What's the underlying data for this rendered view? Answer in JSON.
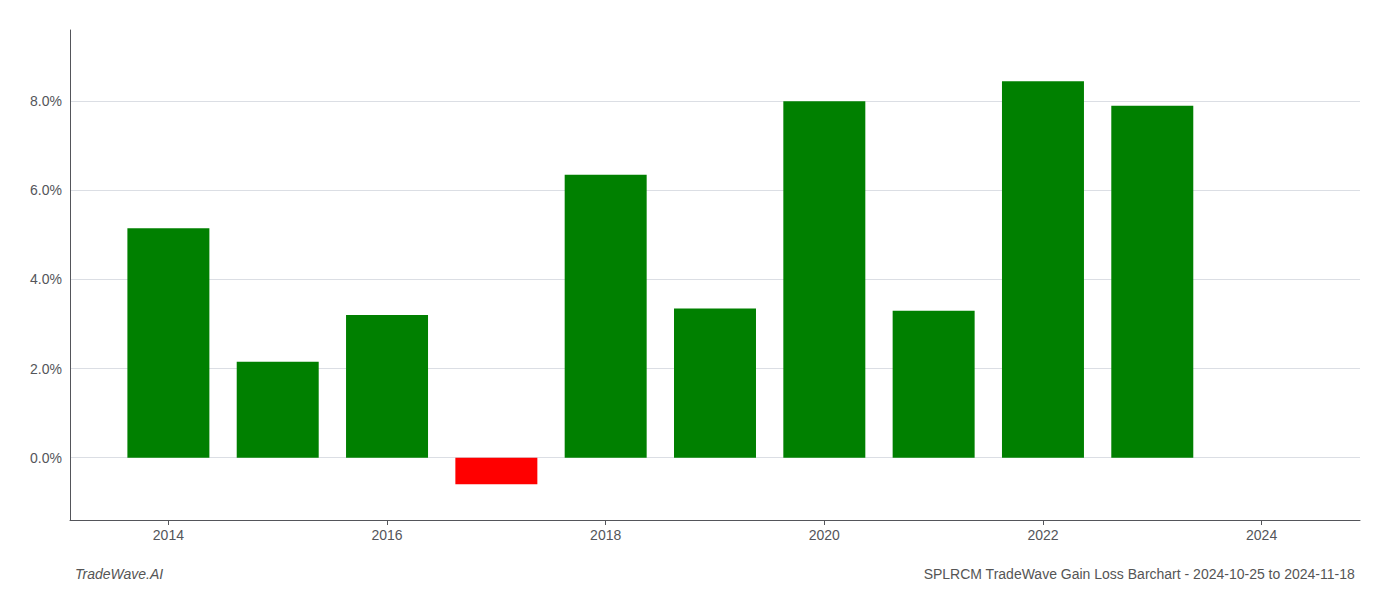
{
  "chart_data": {
    "type": "bar",
    "title": "SPLRCM TradeWave Gain Loss Barchart - 2024-10-25 to 2024-11-18",
    "annotations": [
      "TradeWave.AI"
    ],
    "x": [
      2014,
      2015,
      2016,
      2017,
      2018,
      2019,
      2020,
      2021,
      2022,
      2023
    ],
    "values": [
      0.0515,
      0.0215,
      0.032,
      -0.006,
      0.0635,
      0.0335,
      0.08,
      0.033,
      0.0845,
      0.079
    ],
    "colors": [
      "#008000",
      "#008000",
      "#008000",
      "#ff0000",
      "#008000",
      "#008000",
      "#008000",
      "#008000",
      "#008000",
      "#008000"
    ],
    "xlim": [
      2013.1,
      2024.9
    ],
    "xticks": [
      2014,
      2016,
      2018,
      2020,
      2022,
      2024
    ],
    "ylim": [
      -0.014,
      0.096
    ],
    "yticks": [
      {
        "value": 0.0,
        "label": "0.0%"
      },
      {
        "value": 0.02,
        "label": "2.0%"
      },
      {
        "value": 0.04,
        "label": "4.0%"
      },
      {
        "value": 0.06,
        "label": "6.0%"
      },
      {
        "value": 0.08,
        "label": "8.0%"
      }
    ],
    "grid": true
  }
}
